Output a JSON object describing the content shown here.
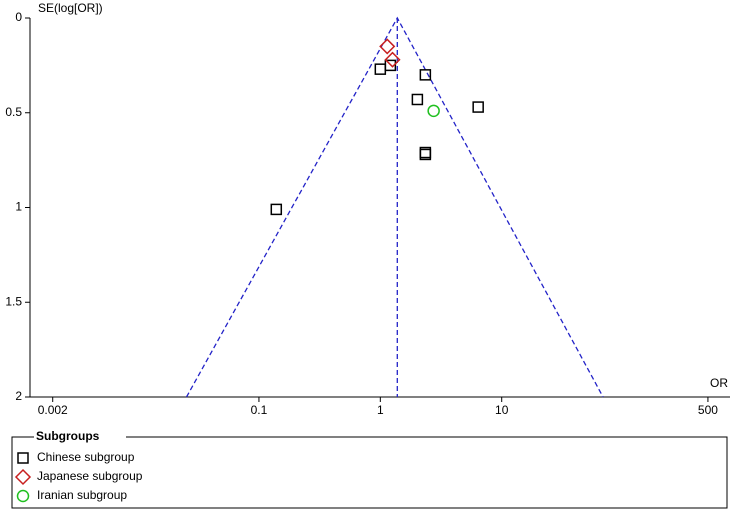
{
  "chart_data": {
    "type": "scatter",
    "x_label": "OR",
    "y_label": "SE(log[OR])",
    "xlog": true,
    "xlim": [
      0.0013,
      760
    ],
    "xticks": [
      0.002,
      0.1,
      1,
      10,
      500
    ],
    "ylim": [
      0,
      2
    ],
    "yticks": [
      0,
      0.5,
      1,
      1.5,
      2
    ],
    "yinverted": true,
    "funnel": {
      "color": "#2323c8",
      "x": [
        0.0253,
        1.38,
        68.4
      ],
      "y": [
        2,
        0,
        2
      ]
    },
    "pooled": {
      "color": "#2323c8",
      "x": [
        1.38,
        1.38
      ],
      "y": [
        0,
        2
      ]
    },
    "legend_title": "Subgroups",
    "series": [
      {
        "name": "Chinese subgroup",
        "color": "#000000",
        "marker": "square",
        "x": [
          1.0,
          1.21,
          2.35,
          2.02,
          6.4,
          2.35,
          2.35,
          0.139
        ],
        "values": [
          0.27,
          0.25,
          0.3,
          0.43,
          0.47,
          0.72,
          0.71,
          1.01
        ]
      },
      {
        "name": "Japanese subgroup",
        "color": "#c82020",
        "marker": "diamond",
        "x": [
          1.14,
          1.26
        ],
        "values": [
          0.15,
          0.22
        ]
      },
      {
        "name": "Iranian subgroup",
        "color": "#20c020",
        "marker": "circle",
        "x": [
          2.75
        ],
        "values": [
          0.49
        ]
      }
    ]
  }
}
